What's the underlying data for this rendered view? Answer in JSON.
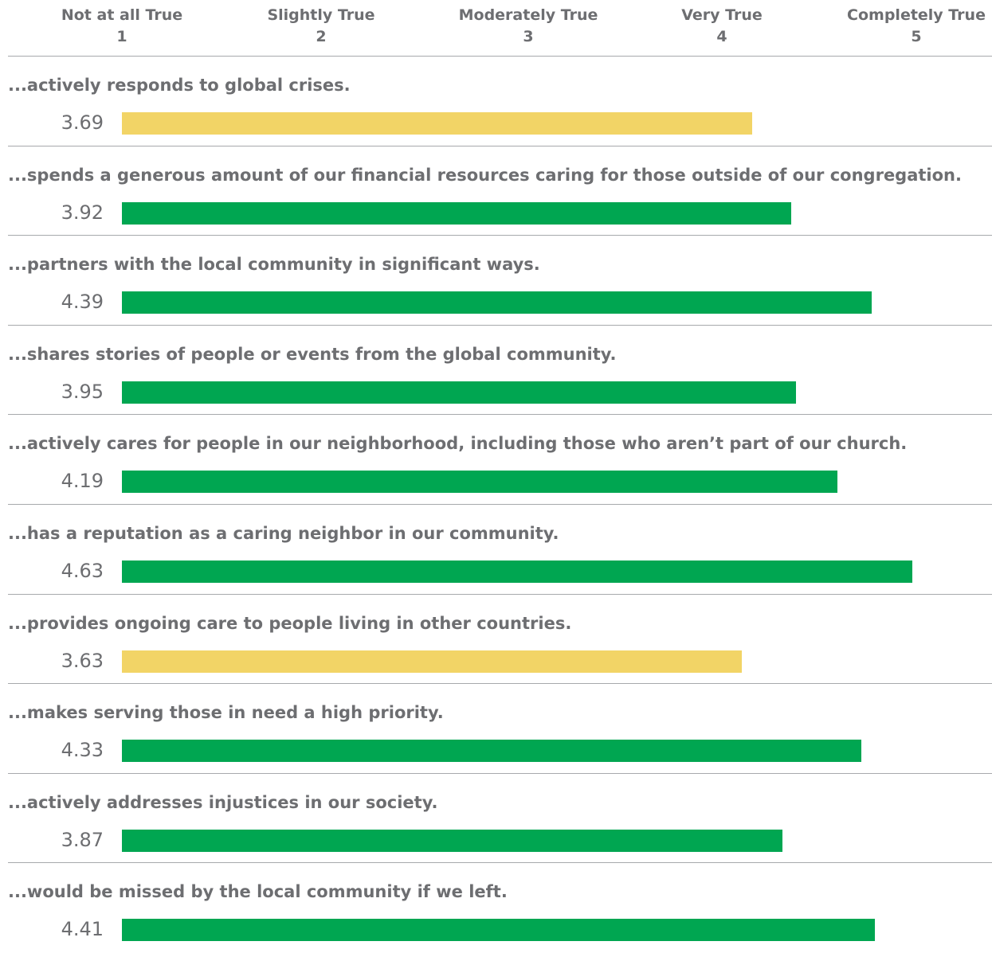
{
  "chart_data": {
    "type": "bar",
    "orientation": "horizontal",
    "xlim": [
      1,
      5
    ],
    "scale": [
      {
        "name": "Not at all True",
        "value": "1"
      },
      {
        "name": "Slightly True",
        "value": "2"
      },
      {
        "name": "Moderately True",
        "value": "3"
      },
      {
        "name": "Very True",
        "value": "4"
      },
      {
        "name": "Completely True",
        "value": "5"
      }
    ],
    "categories": [
      "...actively responds to global crises.",
      "...spends a generous amount of our financial resources caring for those outside of our congregation.",
      "...partners with the local community in significant ways.",
      "...shares stories of people or events from the global community.",
      "...actively cares for people in our neighborhood, including those who aren’t part of our church.",
      "...has a reputation as a caring neighbor in our community.",
      "...provides ongoing care to people living in other countries.",
      "...makes serving those in need a high priority.",
      "...actively addresses injustices in our society.",
      "...would be missed by the local community if we left."
    ],
    "values": [
      3.69,
      3.92,
      4.39,
      3.95,
      4.19,
      4.63,
      3.63,
      4.33,
      3.87,
      4.41
    ],
    "value_labels": [
      "3.69",
      "3.92",
      "4.39",
      "3.95",
      "4.19",
      "4.63",
      "3.63",
      "4.33",
      "3.87",
      "4.41"
    ],
    "bar_colors": [
      "#f2d466",
      "#00a651",
      "#00a651",
      "#00a651",
      "#00a651",
      "#00a651",
      "#f2d466",
      "#00a651",
      "#00a651",
      "#00a651"
    ],
    "colors": {
      "high": "#00a651",
      "low": "#f2d466",
      "text": "#6d6e71",
      "rule": "#a7a9ac"
    },
    "grid": false,
    "legend": "none"
  }
}
